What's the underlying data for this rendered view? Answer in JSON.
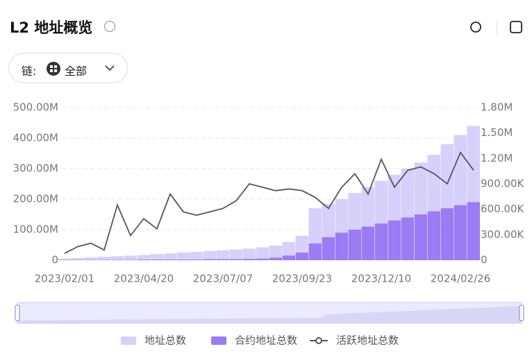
{
  "header": {
    "title": "L2 地址概览",
    "filter_label": "链:",
    "filter_value": "全部"
  },
  "chart_data": {
    "type": "bar-line",
    "categories": [
      "2023/02/01",
      null,
      null,
      null,
      null,
      null,
      "2023/04/20",
      null,
      null,
      null,
      null,
      null,
      "2023/07/07",
      null,
      null,
      null,
      null,
      null,
      "2023/09/23",
      null,
      null,
      null,
      null,
      null,
      "2023/12/10",
      null,
      null,
      null,
      null,
      null,
      "2024/02/26",
      null
    ],
    "series": [
      {
        "name": "地址总数",
        "color": "#d6d0fb",
        "kind": "bar",
        "values": [
          5000000,
          7000000,
          9000000,
          11000000,
          13000000,
          15000000,
          17000000,
          20000000,
          22000000,
          25000000,
          27000000,
          30000000,
          32000000,
          35000000,
          38000000,
          42000000,
          48000000,
          60000000,
          80000000,
          170000000,
          185000000,
          200000000,
          220000000,
          240000000,
          260000000,
          280000000,
          300000000,
          320000000,
          345000000,
          380000000,
          410000000,
          440000000
        ]
      },
      {
        "name": "合约地址总数",
        "color": "#9b7cf5",
        "kind": "bar",
        "values": [
          1000000,
          1000000,
          1000000,
          1000000,
          1000000,
          1000000,
          2000000,
          2000000,
          2000000,
          2000000,
          2000000,
          3000000,
          3000000,
          3000000,
          4000000,
          5000000,
          8000000,
          15000000,
          25000000,
          55000000,
          75000000,
          90000000,
          100000000,
          110000000,
          120000000,
          130000000,
          140000000,
          150000000,
          160000000,
          170000000,
          180000000,
          190000000
        ]
      },
      {
        "name": "活跃地址总数",
        "color": "#555555",
        "kind": "line",
        "axis": "y2",
        "values": [
          80000,
          160000,
          200000,
          120000,
          650000,
          290000,
          490000,
          370000,
          780000,
          570000,
          530000,
          570000,
          610000,
          700000,
          900000,
          860000,
          820000,
          840000,
          820000,
          740000,
          610000,
          860000,
          1020000,
          780000,
          1190000,
          860000,
          1060000,
          1100000,
          1020000,
          900000,
          1270000,
          1060000
        ]
      }
    ],
    "ylim": [
      0,
      500000000
    ],
    "yticks": [
      0,
      {
        "value": 100000000,
        "label": "100.00M"
      },
      {
        "value": 200000000,
        "label": "200.00M"
      },
      {
        "value": 300000000,
        "label": "300.00M"
      },
      {
        "value": 400000000,
        "label": "400.00M"
      },
      {
        "value": 500000000,
        "label": "500.00M"
      }
    ],
    "y2lim": [
      0,
      1800000
    ],
    "y2ticks": [
      0,
      {
        "value": 300000,
        "label": "300.00K"
      },
      {
        "value": 600000,
        "label": "600.00K"
      },
      {
        "value": 900000,
        "label": "900.00K"
      },
      {
        "value": 1200000,
        "label": "1.20M"
      },
      {
        "value": 1500000,
        "label": "1.50M"
      },
      {
        "value": 1800000,
        "label": "1.80M"
      }
    ],
    "grid": true
  }
}
